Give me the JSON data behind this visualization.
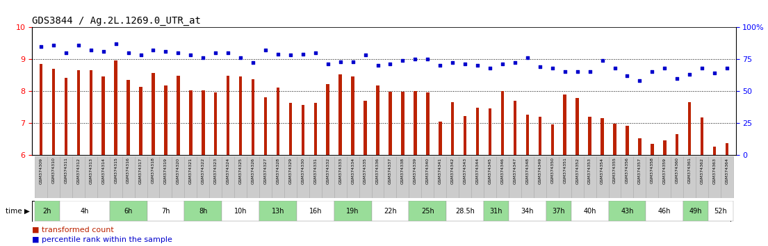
{
  "title": "GDS3844 / Ag.2L.1269.0_UTR_at",
  "samples": [
    "GSM374309",
    "GSM374310",
    "GSM374311",
    "GSM374312",
    "GSM374313",
    "GSM374314",
    "GSM374315",
    "GSM374316",
    "GSM374317",
    "GSM374318",
    "GSM374319",
    "GSM374320",
    "GSM374321",
    "GSM374322",
    "GSM374323",
    "GSM374324",
    "GSM374325",
    "GSM374326",
    "GSM374327",
    "GSM374328",
    "GSM374329",
    "GSM374330",
    "GSM374331",
    "GSM374332",
    "GSM374333",
    "GSM374334",
    "GSM374335",
    "GSM374336",
    "GSM374337",
    "GSM374338",
    "GSM374339",
    "GSM374340",
    "GSM374341",
    "GSM374342",
    "GSM374343",
    "GSM374344",
    "GSM374345",
    "GSM374346",
    "GSM374347",
    "GSM374348",
    "GSM374349",
    "GSM374350",
    "GSM374351",
    "GSM374352",
    "GSM374353",
    "GSM374354",
    "GSM374355",
    "GSM374356",
    "GSM374357",
    "GSM374358",
    "GSM374359",
    "GSM374360",
    "GSM374361",
    "GSM374362",
    "GSM374363",
    "GSM374364"
  ],
  "red_values": [
    8.85,
    8.7,
    8.42,
    8.65,
    8.65,
    8.45,
    8.95,
    8.35,
    8.12,
    8.57,
    8.18,
    8.47,
    8.02,
    8.02,
    7.95,
    8.47,
    8.45,
    8.37,
    7.8,
    8.1,
    7.63,
    7.57,
    7.63,
    8.22,
    8.52,
    8.45,
    7.7,
    8.18,
    7.97,
    7.97,
    8.0,
    7.95,
    7.05,
    7.65,
    7.22,
    7.47,
    7.45,
    8.0,
    7.7,
    7.25,
    7.2,
    6.95,
    7.9,
    7.78,
    7.2,
    7.15,
    6.97,
    6.92,
    6.52,
    6.35,
    6.45,
    6.65,
    7.65,
    7.17,
    6.27,
    6.37
  ],
  "blue_pct": [
    85,
    86,
    80,
    86,
    82,
    81,
    87,
    80,
    78,
    82,
    81,
    80,
    78,
    76,
    80,
    80,
    76,
    72,
    82,
    79,
    78,
    79,
    80,
    71,
    73,
    73,
    78,
    70,
    71,
    74,
    75,
    75,
    70,
    72,
    71,
    70,
    68,
    71,
    72,
    76,
    69,
    68,
    65,
    65,
    65,
    74,
    68,
    62,
    58,
    65,
    68,
    60,
    63,
    68,
    64,
    68
  ],
  "time_groups": [
    {
      "label": "2h",
      "start": 0,
      "end": 2,
      "shade": true
    },
    {
      "label": "4h",
      "start": 2,
      "end": 6,
      "shade": false
    },
    {
      "label": "6h",
      "start": 6,
      "end": 9,
      "shade": true
    },
    {
      "label": "7h",
      "start": 9,
      "end": 12,
      "shade": false
    },
    {
      "label": "8h",
      "start": 12,
      "end": 15,
      "shade": true
    },
    {
      "label": "10h",
      "start": 15,
      "end": 18,
      "shade": false
    },
    {
      "label": "13h",
      "start": 18,
      "end": 21,
      "shade": true
    },
    {
      "label": "16h",
      "start": 21,
      "end": 24,
      "shade": false
    },
    {
      "label": "19h",
      "start": 24,
      "end": 27,
      "shade": true
    },
    {
      "label": "22h",
      "start": 27,
      "end": 30,
      "shade": false
    },
    {
      "label": "25h",
      "start": 30,
      "end": 33,
      "shade": true
    },
    {
      "label": "28.5h",
      "start": 33,
      "end": 36,
      "shade": false
    },
    {
      "label": "31h",
      "start": 36,
      "end": 38,
      "shade": true
    },
    {
      "label": "34h",
      "start": 38,
      "end": 41,
      "shade": false
    },
    {
      "label": "37h",
      "start": 41,
      "end": 43,
      "shade": true
    },
    {
      "label": "40h",
      "start": 43,
      "end": 46,
      "shade": false
    },
    {
      "label": "43h",
      "start": 46,
      "end": 49,
      "shade": true
    },
    {
      "label": "46h",
      "start": 49,
      "end": 52,
      "shade": false
    },
    {
      "label": "49h",
      "start": 52,
      "end": 54,
      "shade": true
    },
    {
      "label": "52h",
      "start": 54,
      "end": 56,
      "shade": false
    }
  ],
  "bar_color": "#bb2200",
  "dot_color": "#0000cc",
  "bar_bottom": 6.0,
  "ylim_left": [
    6,
    10
  ],
  "ylim_right": [
    0,
    100
  ],
  "yticks_left": [
    6,
    7,
    8,
    9,
    10
  ],
  "yticks_right": [
    0,
    25,
    50,
    75,
    100
  ],
  "title_fontsize": 10,
  "legend_label_red": "transformed count",
  "legend_label_blue": "percentile rank within the sample",
  "sample_bg": "#cccccc",
  "time_bg_green": "#99dd99",
  "time_bg_white": "#ffffff"
}
